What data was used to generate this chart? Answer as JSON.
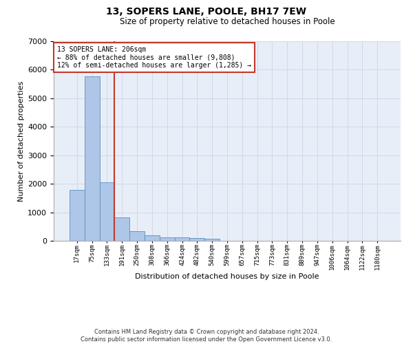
{
  "title": "13, SOPERS LANE, POOLE, BH17 7EW",
  "subtitle": "Size of property relative to detached houses in Poole",
  "xlabel": "Distribution of detached houses by size in Poole",
  "ylabel": "Number of detached properties",
  "bar_labels": [
    "17sqm",
    "75sqm",
    "133sqm",
    "191sqm",
    "250sqm",
    "308sqm",
    "366sqm",
    "424sqm",
    "482sqm",
    "540sqm",
    "599sqm",
    "657sqm",
    "715sqm",
    "773sqm",
    "831sqm",
    "889sqm",
    "947sqm",
    "1006sqm",
    "1064sqm",
    "1122sqm",
    "1180sqm"
  ],
  "bar_values": [
    1780,
    5780,
    2060,
    820,
    340,
    190,
    120,
    110,
    90,
    70,
    0,
    0,
    0,
    0,
    0,
    0,
    0,
    0,
    0,
    0,
    0
  ],
  "bar_color": "#aec6e8",
  "bar_edgecolor": "#5a8fc0",
  "vline_color": "#c0392b",
  "annotation_line1": "13 SOPERS LANE: 206sqm",
  "annotation_line2": "← 88% of detached houses are smaller (9,808)",
  "annotation_line3": "12% of semi-detached houses are larger (1,285) →",
  "annotation_box_color": "#c0392b",
  "ylim": [
    0,
    7000
  ],
  "yticks": [
    0,
    1000,
    2000,
    3000,
    4000,
    5000,
    6000,
    7000
  ],
  "grid_color": "#d0d8e8",
  "background_color": "#e8eef8",
  "footnote1": "Contains HM Land Registry data © Crown copyright and database right 2024.",
  "footnote2": "Contains public sector information licensed under the Open Government Licence v3.0."
}
